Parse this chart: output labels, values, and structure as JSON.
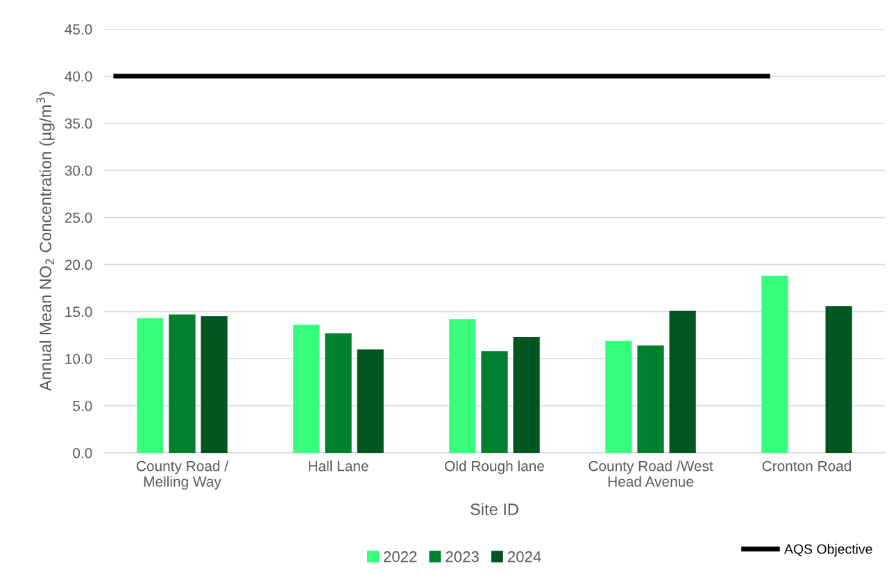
{
  "chart_data": {
    "type": "bar",
    "xlabel": "Site ID",
    "ylabel": "Annual Mean NO$_{2}$ Concentration (µg/m$^{3}$)",
    "categories": [
      "County Road /\nMelling Way",
      "Hall Lane",
      "Old Rough lane",
      "County Road /West\nHead Avenue",
      "Cronton Road"
    ],
    "series": [
      {
        "name": "2022",
        "color": "#38fd7c",
        "values": [
          14.3,
          13.6,
          14.2,
          11.9,
          18.8
        ]
      },
      {
        "name": "2023",
        "color": "#007f2f",
        "values": [
          14.7,
          12.7,
          10.8,
          11.4,
          null
        ]
      },
      {
        "name": "2024",
        "color": "#005620",
        "values": [
          14.5,
          11.0,
          12.3,
          15.1,
          15.6
        ]
      }
    ],
    "ref_lines": [
      {
        "axis": "y",
        "value": 40.0,
        "label": "AQS Objective",
        "color": "#000000"
      }
    ],
    "ylim": [
      0,
      45
    ],
    "yticks": [
      {
        "value": 0,
        "label": "0.0"
      },
      {
        "value": 5,
        "label": "5.0"
      },
      {
        "value": 10,
        "label": "10.0"
      },
      {
        "value": 15,
        "label": "15.0"
      },
      {
        "value": 20,
        "label": "20.0"
      },
      {
        "value": 25,
        "label": "25.0"
      },
      {
        "value": 30,
        "label": "30.0"
      },
      {
        "value": 35,
        "label": "35.0"
      },
      {
        "value": 40,
        "label": "40.0"
      },
      {
        "value": 45,
        "label": "45.0"
      }
    ],
    "grid": "y",
    "legend": "bottom"
  }
}
